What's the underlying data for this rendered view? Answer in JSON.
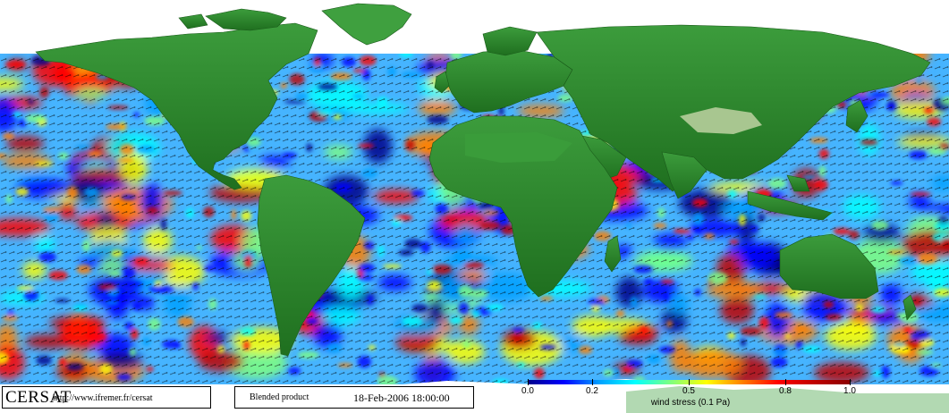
{
  "logo": "CERSAT",
  "url": "http://www.ifremer.fr/cersat",
  "product": "Blended product",
  "datetime": "18-Feb-2006 18:00:00",
  "legend": {
    "title": "wind stress (0.1 Pa)",
    "ticks": [
      "0.0",
      "0.2",
      "0.5",
      "0.8",
      "1.0"
    ],
    "colors": [
      "#00008b",
      "#0000ff",
      "#00a0ff",
      "#00ffff",
      "#7fff7f",
      "#ffff00",
      "#ff8000",
      "#ff0000",
      "#c00000",
      "#8b0000"
    ]
  },
  "colors": {
    "land": "#2e8b2e",
    "land_dark": "#1f6b1f",
    "ice": "#ffffff",
    "ocean_base": "#3aa8ff"
  }
}
